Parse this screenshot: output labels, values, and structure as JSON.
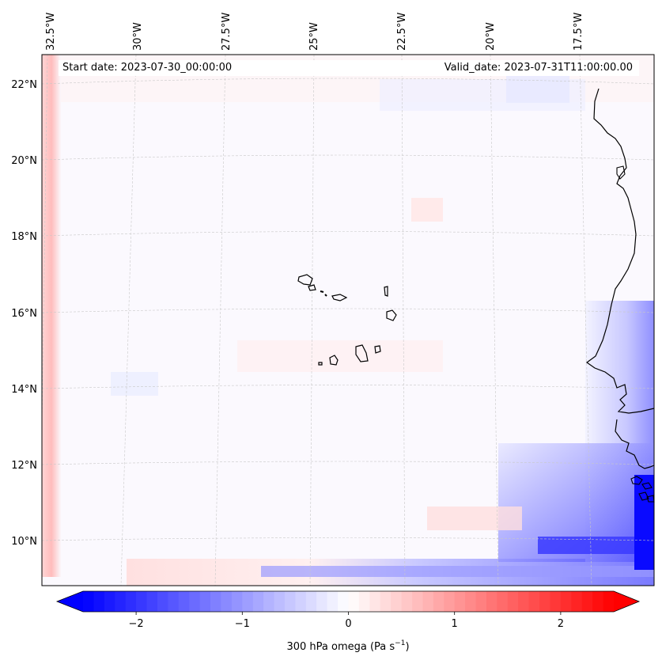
{
  "header": {
    "start_date": "Start date: 2023-07-30_00:00:00",
    "valid_date": "Valid_date: 2023-07-31T11:00:00.00"
  },
  "map": {
    "lon_labels": [
      "32.5°W",
      "30°W",
      "27.5°W",
      "25°W",
      "22.5°W",
      "20°W",
      "17.5°W"
    ],
    "lat_labels": [
      "22°N",
      "20°N",
      "18°N",
      "16°N",
      "14°N",
      "12°N",
      "10°N"
    ],
    "gridlines": true,
    "features": [
      "cape-verde-islands",
      "west-africa-coastline"
    ]
  },
  "colorbar": {
    "label": "300 hPa omega (Pa s",
    "label_exponent": "−1",
    "label_close": ")",
    "tick_labels": [
      "−2",
      "−1",
      "0",
      "1",
      "2"
    ],
    "tick_values": [
      -2,
      -1,
      0,
      1,
      2
    ],
    "range": [
      -2.5,
      2.5
    ],
    "colormap": "bwr",
    "colors": {
      "min": "#0000ff",
      "mid": "#ffffff",
      "max": "#ff0000"
    },
    "extend": "both"
  }
}
